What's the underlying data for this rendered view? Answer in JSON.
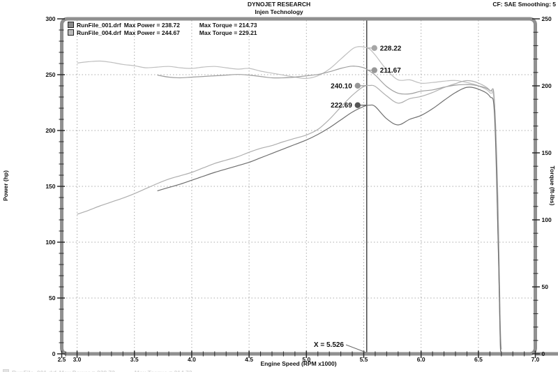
{
  "header": {
    "title_line1": "DYNOJET RESEARCH",
    "title_line2": "Injen Technology",
    "corner_info": "CF: SAE  Smoothing: 5"
  },
  "legend": {
    "runs": [
      {
        "file": "RunFile_001.drf",
        "power_text": "Max Power = 238.72",
        "torque_text": "Max Torque = 214.73",
        "swatch_color": "#8a8a8a"
      },
      {
        "file": "RunFile_004.drf",
        "power_text": "Max Power = 244.67",
        "torque_text": "Max Torque = 229.21",
        "swatch_color": "#b9b9b9"
      }
    ]
  },
  "footer_ghost": {
    "file": "RunFile_001.drf",
    "power_text": "Max Power = 238.72",
    "torque_text": "Max Torque = 214.73"
  },
  "chart_data": {
    "type": "line",
    "title": "DYNOJET RESEARCH",
    "subtitle": "Injen Technology",
    "xlabel": "Engine Speed (RPM x1000)",
    "ylabel_left": "Power (hp)",
    "ylabel_right": "Torque (ft-lbs)",
    "x_axis": {
      "tick_labels": [
        "2.5",
        "3.0",
        "3.5",
        "4.0",
        "4.5",
        "5.0",
        "5.5",
        "6.0",
        "6.5",
        "7.0"
      ],
      "tick_values": [
        2.5,
        3.0,
        3.5,
        4.0,
        4.5,
        5.0,
        5.5,
        6.0,
        6.5,
        7.0
      ],
      "minor_start": 2.9,
      "minor_end": 7.0,
      "minor_step": 0.1
    },
    "y_left": {
      "min": 0,
      "max": 300,
      "major_step": 50,
      "minor_step": 10
    },
    "y_right": {
      "min": 0,
      "max": 250,
      "major_step": 50,
      "minor_step": 10
    },
    "grid": {
      "vertical_rpm": [
        3.0,
        3.5,
        4.0,
        4.5,
        5.0,
        5.5,
        6.0,
        6.5
      ],
      "horizontal_power": [
        50,
        100,
        150,
        200,
        250
      ]
    },
    "cursor": {
      "rpm": 5.526,
      "label": "X = 5.526"
    },
    "point_labels": [
      {
        "text": "228.22",
        "axis": "torque",
        "value": 228.22,
        "side": "right",
        "color": "#a6a6a6"
      },
      {
        "text": "211.67",
        "axis": "torque",
        "value": 211.67,
        "side": "right",
        "color": "#979797"
      },
      {
        "text": "240.10",
        "axis": "power",
        "value": 240.1,
        "side": "left",
        "color": "#979797"
      },
      {
        "text": "222.69",
        "axis": "power",
        "value": 222.69,
        "side": "left",
        "color": "#555555"
      }
    ],
    "series": [
      {
        "name": "run004_torque",
        "run": "RunFile_004.drf",
        "axis": "torque",
        "max": 229.21,
        "color": "#bfbfbf",
        "points": [
          [
            3.0,
            217
          ],
          [
            3.1,
            218
          ],
          [
            3.2,
            218.5
          ],
          [
            3.3,
            217.5
          ],
          [
            3.4,
            216
          ],
          [
            3.5,
            215
          ],
          [
            3.6,
            213.5
          ],
          [
            3.7,
            214
          ],
          [
            3.8,
            214.5
          ],
          [
            3.9,
            213.5
          ],
          [
            4.0,
            213
          ],
          [
            4.1,
            214
          ],
          [
            4.2,
            214.5
          ],
          [
            4.3,
            213.5
          ],
          [
            4.4,
            212.5
          ],
          [
            4.5,
            213
          ],
          [
            4.6,
            211
          ],
          [
            4.7,
            209.5
          ],
          [
            4.8,
            208
          ],
          [
            4.9,
            206.5
          ],
          [
            5.0,
            205.5
          ],
          [
            5.1,
            207.5
          ],
          [
            5.2,
            212.5
          ],
          [
            5.3,
            220
          ],
          [
            5.4,
            227.5
          ],
          [
            5.45,
            229.2
          ],
          [
            5.5,
            229
          ],
          [
            5.55,
            227.5
          ],
          [
            5.6,
            223
          ],
          [
            5.7,
            212
          ],
          [
            5.8,
            204.5
          ],
          [
            5.9,
            204.5
          ],
          [
            6.0,
            202
          ],
          [
            6.1,
            202.5
          ],
          [
            6.2,
            203.5
          ],
          [
            6.3,
            204
          ],
          [
            6.4,
            202.5
          ],
          [
            6.5,
            200
          ],
          [
            6.6,
            195
          ],
          [
            6.64,
            185
          ],
          [
            6.67,
            100
          ],
          [
            6.69,
            20
          ],
          [
            6.695,
            3
          ]
        ]
      },
      {
        "name": "run001_torque",
        "run": "RunFile_001.drf",
        "axis": "torque",
        "max": 214.73,
        "color": "#9e9e9e",
        "points": [
          [
            3.7,
            208
          ],
          [
            3.8,
            206.5
          ],
          [
            3.9,
            206
          ],
          [
            4.0,
            206.5
          ],
          [
            4.1,
            207
          ],
          [
            4.2,
            207.5
          ],
          [
            4.3,
            208
          ],
          [
            4.4,
            208.5
          ],
          [
            4.5,
            208
          ],
          [
            4.6,
            207
          ],
          [
            4.7,
            206
          ],
          [
            4.8,
            206
          ],
          [
            4.9,
            206.5
          ],
          [
            5.0,
            207.5
          ],
          [
            5.1,
            208.5
          ],
          [
            5.2,
            210.5
          ],
          [
            5.3,
            213
          ],
          [
            5.4,
            214.7
          ],
          [
            5.5,
            213.5
          ],
          [
            5.55,
            211
          ],
          [
            5.6,
            208
          ],
          [
            5.7,
            199.5
          ],
          [
            5.8,
            194.5
          ],
          [
            5.9,
            194
          ],
          [
            6.0,
            196
          ],
          [
            6.1,
            197
          ],
          [
            6.2,
            199
          ],
          [
            6.3,
            200.5
          ],
          [
            6.4,
            201
          ],
          [
            6.5,
            200
          ],
          [
            6.6,
            196.5
          ],
          [
            6.64,
            188
          ],
          [
            6.67,
            95
          ],
          [
            6.69,
            12
          ],
          [
            6.695,
            2
          ]
        ]
      },
      {
        "name": "run004_power",
        "run": "RunFile_004.drf",
        "axis": "power",
        "max": 244.67,
        "color": "#aeaeae",
        "points": [
          [
            3.0,
            125
          ],
          [
            3.1,
            128.5
          ],
          [
            3.2,
            132.5
          ],
          [
            3.3,
            136
          ],
          [
            3.4,
            139.5
          ],
          [
            3.5,
            143.5
          ],
          [
            3.6,
            148
          ],
          [
            3.7,
            152.5
          ],
          [
            3.8,
            156.5
          ],
          [
            3.9,
            159.5
          ],
          [
            4.0,
            162.5
          ],
          [
            4.1,
            166.5
          ],
          [
            4.2,
            170.5
          ],
          [
            4.3,
            173.5
          ],
          [
            4.4,
            176.5
          ],
          [
            4.5,
            180.5
          ],
          [
            4.6,
            184
          ],
          [
            4.7,
            186.5
          ],
          [
            4.8,
            190
          ],
          [
            4.9,
            193
          ],
          [
            5.0,
            196
          ],
          [
            5.1,
            201
          ],
          [
            5.2,
            210
          ],
          [
            5.3,
            221
          ],
          [
            5.4,
            231.5
          ],
          [
            5.5,
            239.5
          ],
          [
            5.55,
            240.3
          ],
          [
            5.6,
            239.5
          ],
          [
            5.7,
            231
          ],
          [
            5.8,
            224.5
          ],
          [
            5.9,
            228.5
          ],
          [
            6.0,
            230.5
          ],
          [
            6.1,
            234
          ],
          [
            6.2,
            238.5
          ],
          [
            6.3,
            242
          ],
          [
            6.4,
            244.7
          ],
          [
            6.5,
            242.5
          ],
          [
            6.6,
            236
          ],
          [
            6.64,
            225
          ],
          [
            6.67,
            140
          ],
          [
            6.69,
            30
          ],
          [
            6.7,
            4
          ]
        ]
      },
      {
        "name": "run001_power",
        "run": "RunFile_001.drf",
        "axis": "power",
        "max": 238.72,
        "color": "#6e6e6e",
        "points": [
          [
            3.7,
            146
          ],
          [
            3.8,
            149
          ],
          [
            3.9,
            152
          ],
          [
            4.0,
            155.5
          ],
          [
            4.1,
            159
          ],
          [
            4.2,
            162.5
          ],
          [
            4.3,
            165.5
          ],
          [
            4.4,
            168.5
          ],
          [
            4.5,
            171.5
          ],
          [
            4.6,
            175.5
          ],
          [
            4.7,
            179.5
          ],
          [
            4.8,
            183.5
          ],
          [
            4.9,
            187.5
          ],
          [
            5.0,
            191.5
          ],
          [
            5.1,
            196.5
          ],
          [
            5.2,
            202.5
          ],
          [
            5.3,
            209.5
          ],
          [
            5.4,
            216.5
          ],
          [
            5.5,
            221.5
          ],
          [
            5.55,
            222.7
          ],
          [
            5.6,
            221.5
          ],
          [
            5.7,
            210.5
          ],
          [
            5.8,
            205
          ],
          [
            5.9,
            210
          ],
          [
            6.0,
            213.5
          ],
          [
            6.1,
            219.5
          ],
          [
            6.2,
            227
          ],
          [
            6.3,
            234
          ],
          [
            6.4,
            238.7
          ],
          [
            6.5,
            237
          ],
          [
            6.6,
            230.5
          ],
          [
            6.64,
            215
          ],
          [
            6.67,
            110
          ],
          [
            6.69,
            15
          ],
          [
            6.695,
            2
          ]
        ]
      }
    ]
  }
}
